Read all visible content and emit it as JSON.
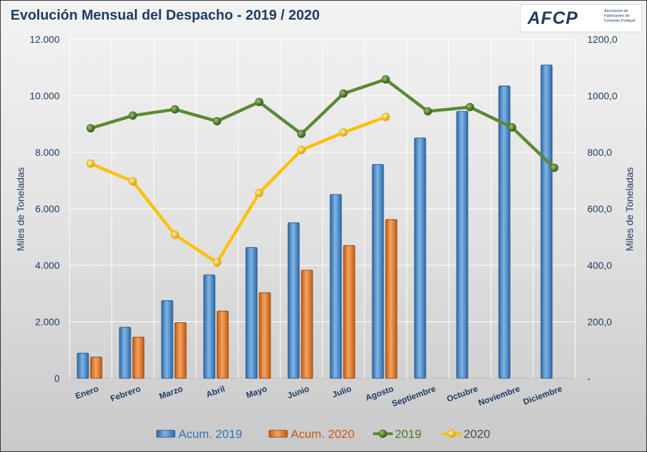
{
  "header": {
    "title": "Evolución Mensual del Despacho - 2019 / 2020",
    "logo_mark": "AFCP",
    "logo_text": "Asociación de Fabricantes de Cemento Portland"
  },
  "chart_data": {
    "type": "bar",
    "title": "Evolución Mensual del Despacho - 2019 / 2020",
    "categories": [
      "Enero",
      "Febrero",
      "Marzo",
      "Abril",
      "Mayo",
      "Junio",
      "Julio",
      "Agosto",
      "Septiembre",
      "Octubre",
      "Noviembre",
      "Diciembre"
    ],
    "ylabel": "Miles de Toneladas",
    "y2label": "Miles de Toneladas",
    "ylim": [
      0,
      12000
    ],
    "y2lim": [
      0,
      1200
    ],
    "y_ticks": [
      "0",
      "2.000",
      "4.000",
      "6.000",
      "8.000",
      "10.000",
      "12.000"
    ],
    "y2_ticks": [
      "-",
      "200,0",
      "400,0",
      "600,0",
      "800,0",
      "1000,0",
      "1200,0"
    ],
    "grid": true,
    "legend_position": "bottom",
    "series": [
      {
        "name": "Acum. 2019",
        "kind": "bar",
        "axis": "left",
        "color": "#4f8fd0",
        "values": [
          890,
          1810,
          2750,
          3660,
          4630,
          5510,
          6510,
          7570,
          8510,
          9450,
          10350,
          11090
        ]
      },
      {
        "name": "Acum. 2020",
        "kind": "bar",
        "axis": "left",
        "color": "#ed7d31",
        "values": [
          750,
          1460,
          1970,
          2380,
          3030,
          3830,
          4700,
          5620,
          null,
          null,
          null,
          null
        ]
      },
      {
        "name": "2019",
        "kind": "line",
        "axis": "right",
        "color": "#5b8a30",
        "marker": "#3d6b1e",
        "values": [
          885,
          930,
          952,
          910,
          978,
          865,
          1008,
          1058,
          945,
          960,
          888,
          745
        ]
      },
      {
        "name": "2020",
        "kind": "line",
        "axis": "right",
        "color": "#ffc000",
        "marker": "#e6ad00",
        "values": [
          760,
          697,
          508,
          410,
          656,
          808,
          870,
          925,
          null,
          null,
          null,
          null
        ]
      }
    ]
  }
}
